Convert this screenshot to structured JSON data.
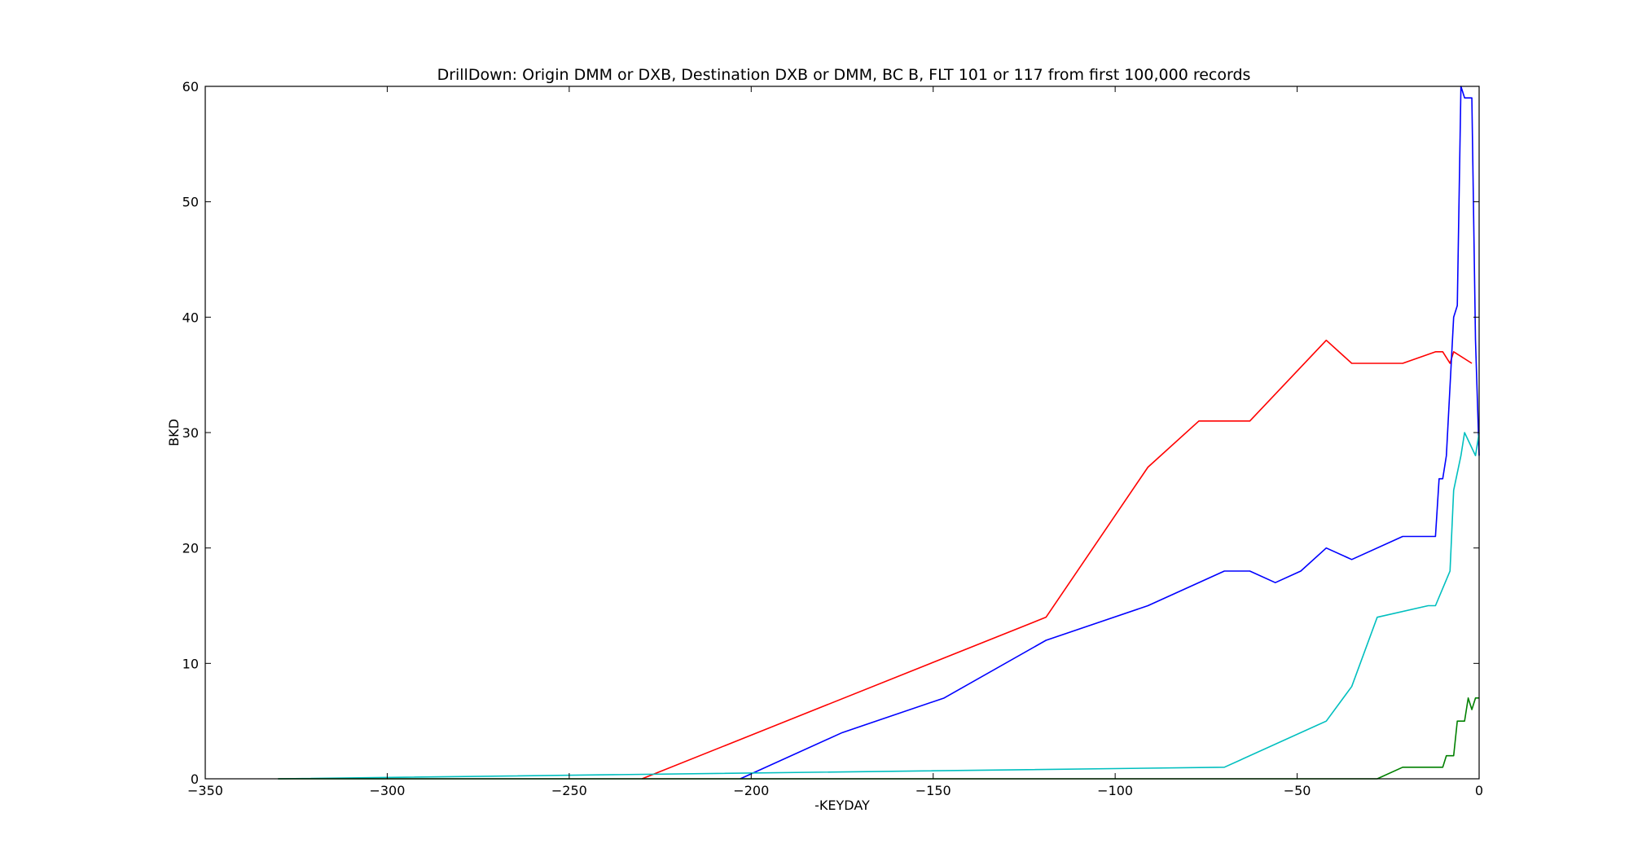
{
  "chart_data": {
    "type": "line",
    "title": "DrillDown: Origin DMM or DXB, Destination DXB or DMM, BC B, FLT 101 or 117 from first 100,000 records",
    "xlabel": "-KEYDAY",
    "ylabel": "BKD",
    "xlim": [
      -350,
      0
    ],
    "ylim": [
      0,
      60
    ],
    "xticks": [
      -350,
      -300,
      -250,
      -200,
      -150,
      -100,
      -50,
      0
    ],
    "yticks": [
      0,
      10,
      20,
      30,
      40,
      50,
      60
    ],
    "xtick_labels": [
      "−350",
      "−300",
      "−250",
      "−200",
      "−150",
      "−100",
      "−50",
      "0"
    ],
    "ytick_labels": [
      "0",
      "10",
      "20",
      "30",
      "40",
      "50",
      "60"
    ],
    "grid": false,
    "legend": false,
    "series": [
      {
        "color": "#ff0000",
        "x": [
          -230,
          -119,
          -91,
          -77,
          -63,
          -42,
          -35,
          -21,
          -12,
          -10,
          -8,
          -7,
          -2
        ],
        "y": [
          0,
          14,
          27,
          31,
          31,
          38,
          36,
          36,
          37,
          37,
          36,
          37,
          36
        ]
      },
      {
        "color": "#0000ff",
        "x": [
          -203,
          -175,
          -147,
          -119,
          -91,
          -70,
          -63,
          -56,
          -49,
          -42,
          -35,
          -21,
          -12,
          -11,
          -10,
          -9,
          -7,
          -6,
          -5,
          -4,
          -3,
          -2,
          -1,
          0
        ],
        "y": [
          0,
          4,
          7,
          12,
          15,
          18,
          18,
          17,
          18,
          20,
          19,
          21,
          21,
          26,
          26,
          28,
          40,
          41,
          60,
          59,
          59,
          59,
          38,
          28
        ]
      },
      {
        "color": "#00bfbf",
        "x": [
          -330,
          -70,
          -42,
          -35,
          -28,
          -14,
          -12,
          -8,
          -7,
          -5,
          -4,
          -1,
          0
        ],
        "y": [
          0,
          1,
          5,
          8,
          14,
          15,
          15,
          18,
          25,
          28,
          30,
          28,
          30
        ]
      },
      {
        "color": "#008000",
        "x": [
          -330,
          -28,
          -21,
          -14,
          -10,
          -9,
          -7,
          -6,
          -4,
          -3,
          -2,
          -1,
          0
        ],
        "y": [
          0,
          0,
          1,
          1,
          1,
          2,
          2,
          5,
          5,
          7,
          6,
          7,
          7
        ]
      }
    ]
  }
}
